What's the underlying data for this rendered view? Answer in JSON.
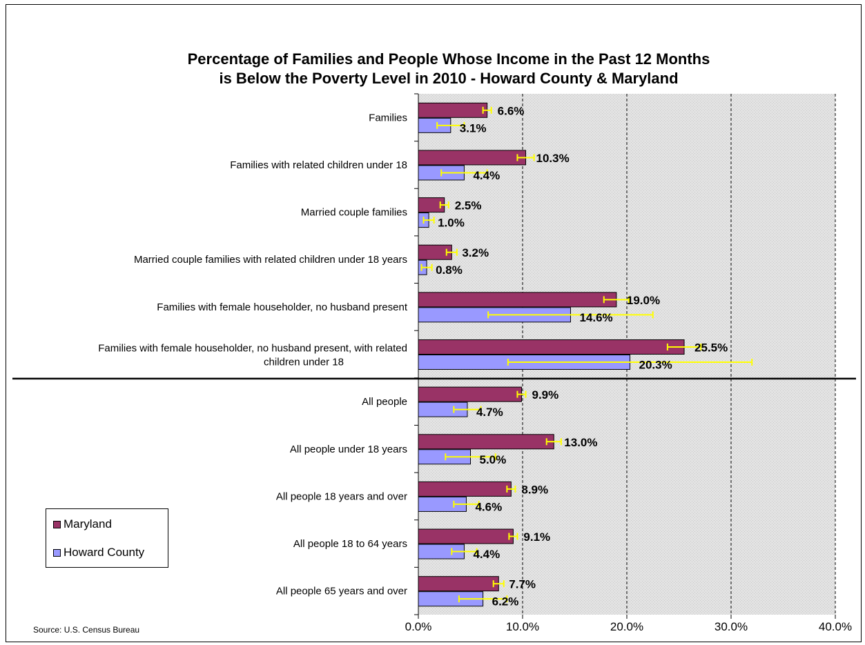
{
  "colors": {
    "maryland": "#993366",
    "howard": "#9999ff",
    "error_bar": "#ffff00",
    "plot_bg": "#e0e0e0"
  },
  "chart_data": {
    "type": "bar",
    "orientation": "horizontal",
    "title_lines": [
      "Percentage of Families and People Whose Income in the Past 12 Months",
      "is Below the Poverty Level in 2010 - Howard County & Maryland"
    ],
    "categories": [
      "Families",
      "Families with related children under 18",
      "Married couple families",
      "Married couple families with related children under 18 years",
      "Families with female householder, no husband present",
      [
        "Families with female householder, no husband present, with related",
        "children under 18"
      ],
      "All people",
      "All people under 18 years",
      "All people 18 years and over",
      "All people 18 to 64 years",
      "All people 65 years and over"
    ],
    "series": [
      {
        "name": "Maryland",
        "values": [
          6.6,
          10.3,
          2.5,
          3.2,
          19.0,
          25.5,
          9.9,
          13.0,
          8.9,
          9.1,
          7.7
        ],
        "labels": [
          "6.6%",
          "10.3%",
          "2.5%",
          "3.2%",
          "19.0%",
          "25.5%",
          "9.9%",
          "13.0%",
          "8.9%",
          "9.1%",
          "7.7%"
        ],
        "error_low": [
          6.2,
          9.5,
          2.1,
          2.7,
          17.8,
          23.9,
          9.5,
          12.3,
          8.5,
          8.7,
          7.2
        ],
        "error_high": [
          7.0,
          11.1,
          2.9,
          3.7,
          20.2,
          27.1,
          10.3,
          13.7,
          9.3,
          9.5,
          8.2
        ]
      },
      {
        "name": "Howard County",
        "values": [
          3.1,
          4.4,
          1.0,
          0.8,
          14.6,
          20.3,
          4.7,
          5.0,
          4.6,
          4.4,
          6.2
        ],
        "labels": [
          "3.1%",
          "4.4%",
          "1.0%",
          "0.8%",
          "14.6%",
          "20.3%",
          "4.7%",
          "5.0%",
          "4.6%",
          "4.4%",
          "6.2%"
        ],
        "error_low": [
          1.8,
          2.2,
          0.5,
          0.3,
          6.7,
          8.6,
          3.4,
          2.6,
          3.4,
          3.2,
          3.9
        ],
        "error_high": [
          4.4,
          6.6,
          1.5,
          1.3,
          22.5,
          32.0,
          6.0,
          7.4,
          5.8,
          5.6,
          8.5
        ]
      }
    ],
    "x_ticks": [
      "0.0%",
      "10.0%",
      "20.0%",
      "30.0%",
      "40.0%"
    ],
    "xlim": [
      0,
      40
    ],
    "grid": "vertical dashed",
    "legend_position": "bottom-left",
    "group_separator_after_index": 5
  },
  "legend": {
    "maryland": "Maryland",
    "howard": "Howard County"
  },
  "source": "Source:  U.S. Census Bureau"
}
